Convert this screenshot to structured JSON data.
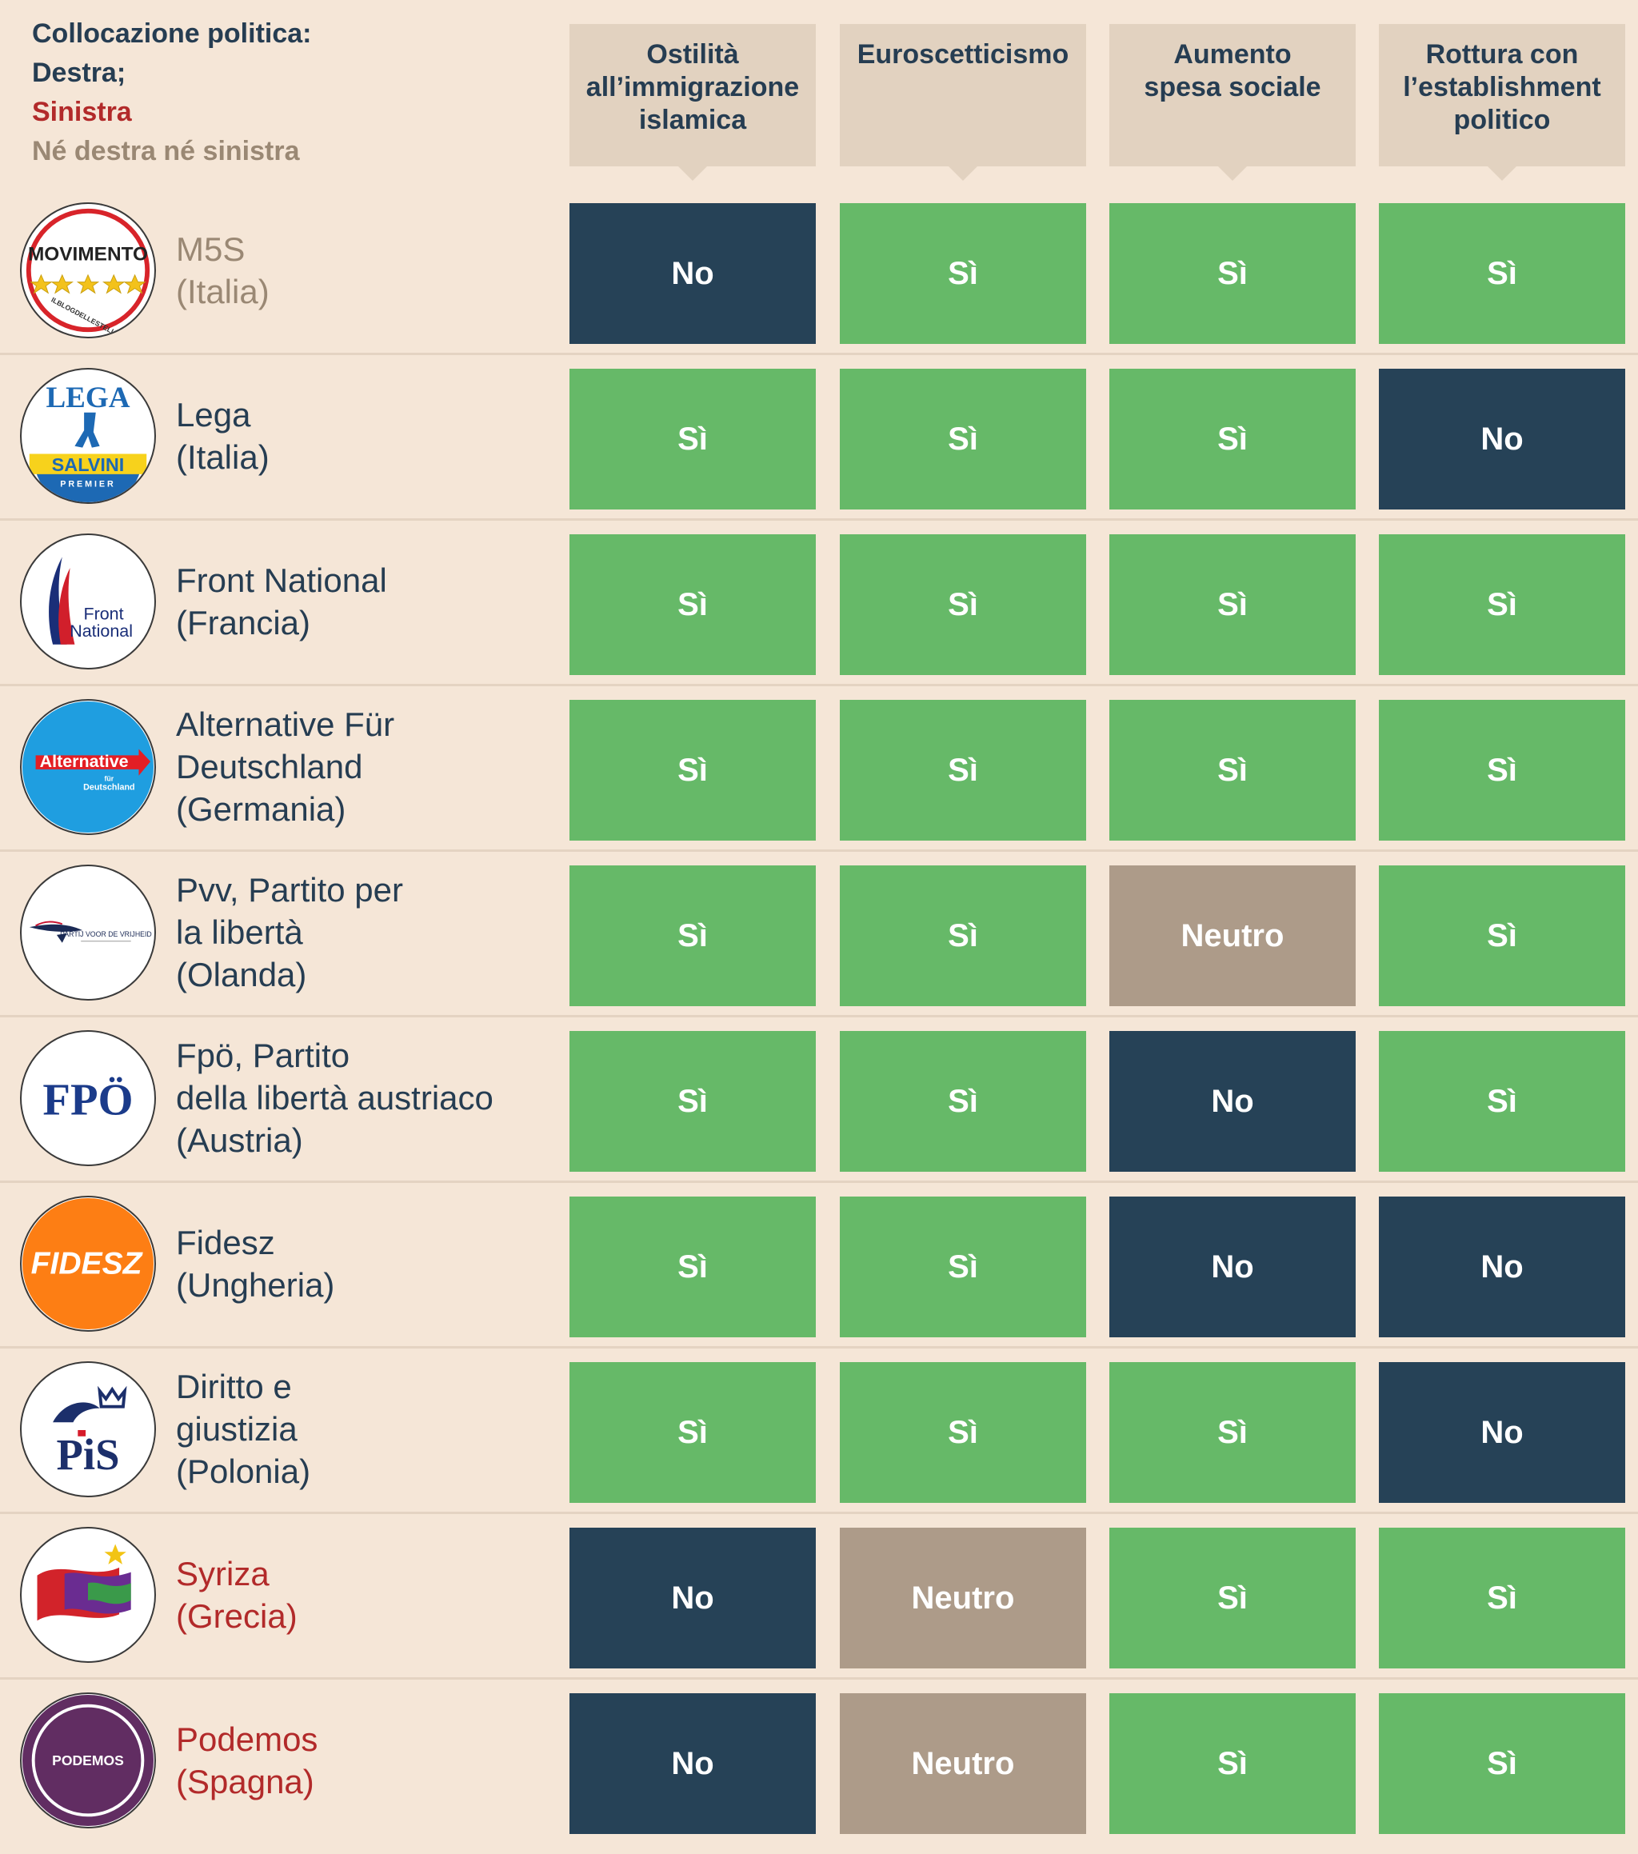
{
  "legend": {
    "title": "Collocazione politica:",
    "right": "Destra;",
    "left": "Sinistra",
    "neutral": "Né destra né sinistra"
  },
  "colors": {
    "background": "#f5e6d7",
    "header_bg": "#e2d2c0",
    "text_dark": "#263d52",
    "text_left": "#b22a2a",
    "text_neutral": "#9a8874",
    "Sì": "#66b968",
    "No": "#264257",
    "Neutro": "#ad9b89"
  },
  "chart_data": {
    "type": "table",
    "columns": [
      "Ostilità\nall’immigrazione\nislamica",
      "Euroscetticismo",
      "Aumento\nspesa sociale",
      "Rottura con\nl’establishment\npolitico"
    ],
    "rows": [
      {
        "party": "M5S\n(Italia)",
        "orientation": "neutral",
        "logo": "movimento-5-stelle-logo",
        "values": [
          "No",
          "Sì",
          "Sì",
          "Sì"
        ]
      },
      {
        "party": "Lega\n(Italia)",
        "orientation": "right",
        "logo": "lega-salvini-logo",
        "values": [
          "Sì",
          "Sì",
          "Sì",
          "No"
        ]
      },
      {
        "party": "Front National\n(Francia)",
        "orientation": "right",
        "logo": "front-national-logo",
        "values": [
          "Sì",
          "Sì",
          "Sì",
          "Sì"
        ]
      },
      {
        "party": "Alternative Für\nDeutschland\n(Germania)",
        "orientation": "right",
        "logo": "afd-logo",
        "values": [
          "Sì",
          "Sì",
          "Sì",
          "Sì"
        ]
      },
      {
        "party": "Pvv, Partito per\nla libertà\n(Olanda)",
        "orientation": "right",
        "logo": "pvv-logo",
        "values": [
          "Sì",
          "Sì",
          "Neutro",
          "Sì"
        ]
      },
      {
        "party": "Fpö, Partito\ndella libertà austriaco\n(Austria)",
        "orientation": "right",
        "logo": "fpo-logo",
        "values": [
          "Sì",
          "Sì",
          "No",
          "Sì"
        ]
      },
      {
        "party": "Fidesz\n(Ungheria)",
        "orientation": "right",
        "logo": "fidesz-logo",
        "values": [
          "Sì",
          "Sì",
          "No",
          "No"
        ]
      },
      {
        "party": "Diritto e\ngiustizia\n(Polonia)",
        "orientation": "right",
        "logo": "pis-logo",
        "values": [
          "Sì",
          "Sì",
          "Sì",
          "No"
        ]
      },
      {
        "party": "Syriza\n(Grecia)",
        "orientation": "left",
        "logo": "syriza-logo",
        "values": [
          "No",
          "Neutro",
          "Sì",
          "Sì"
        ]
      },
      {
        "party": "Podemos\n(Spagna)",
        "orientation": "left",
        "logo": "podemos-logo",
        "values": [
          "No",
          "Neutro",
          "Sì",
          "Sì"
        ]
      }
    ]
  },
  "logo_texts": {
    "m5s": "MOVIMENTO",
    "m5s_sub": "ILBLOGDELLESTELLE.IT",
    "lega": "LEGA",
    "lega_salvini": "SALVINI",
    "lega_premier": "PREMIER",
    "fn_1": "Front",
    "fn_2": "National",
    "afd_1": "Alternative",
    "afd_2": "für",
    "afd_3": "Deutschland",
    "pvv": "PARTIJ VOOR DE VRIJHEID",
    "fpo": "FPÖ",
    "fidesz": "FIDESZ",
    "pis": "PiS",
    "podemos": "PODEMOS"
  }
}
